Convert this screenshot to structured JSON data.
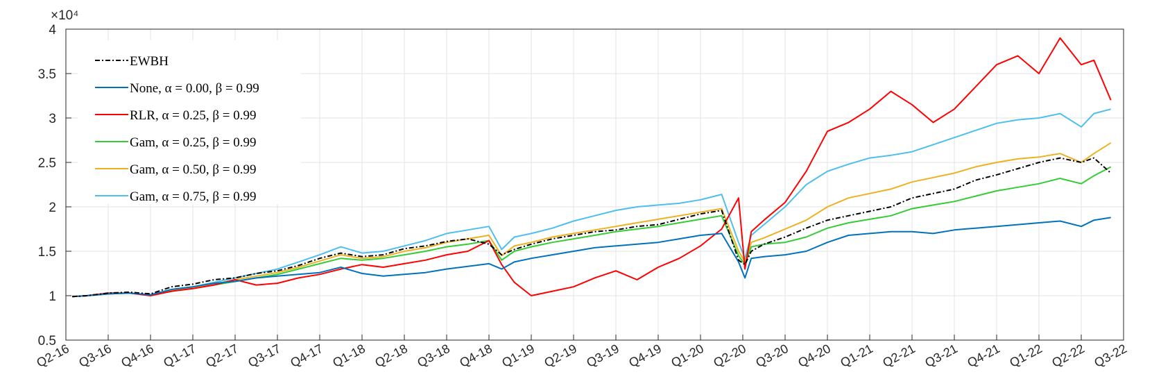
{
  "chart_data": {
    "type": "line",
    "title": "",
    "xlabel": "",
    "ylabel": "",
    "y_exponent_label": "×10⁴",
    "ylim": [
      0.5,
      4.0
    ],
    "yticks": [
      "0.5",
      "1",
      "1.5",
      "2",
      "2.5",
      "3",
      "3.5",
      "4"
    ],
    "yticks_values": [
      0.5,
      1,
      1.5,
      2,
      2.5,
      3,
      3.5,
      4
    ],
    "x_quarters": [
      "Q2-16",
      "Q3-16",
      "Q4-16",
      "Q1-17",
      "Q2-17",
      "Q3-17",
      "Q4-17",
      "Q1-18",
      "Q2-18",
      "Q3-18",
      "Q4-18",
      "Q1-19",
      "Q2-19",
      "Q3-19",
      "Q4-19",
      "Q1-20",
      "Q2-20",
      "Q3-20",
      "Q4-20",
      "Q1-21",
      "Q2-21",
      "Q3-21",
      "Q4-21",
      "Q1-22",
      "Q2-22",
      "Q3-22"
    ],
    "grid": true,
    "legend_position": "top-left",
    "series": [
      {
        "name": "EWBH",
        "color": "#000000",
        "dashed": true,
        "x": [
          0.15,
          0.5,
          1,
          1.5,
          2,
          2.5,
          3,
          3.5,
          4,
          4.5,
          5,
          5.5,
          6,
          6.5,
          7,
          7.5,
          8,
          8.5,
          9,
          9.5,
          10,
          10.3,
          10.6,
          11,
          11.5,
          12,
          12.5,
          13,
          13.5,
          14,
          14.5,
          15,
          15.5,
          15.9,
          16.05,
          16.2,
          16.5,
          17,
          17.5,
          18,
          18.5,
          19,
          19.5,
          20,
          20.5,
          21,
          21.5,
          22,
          22.5,
          23,
          23.5,
          24,
          24.3,
          24.7
        ],
        "y": [
          0.99,
          1.0,
          1.03,
          1.04,
          1.02,
          1.1,
          1.13,
          1.18,
          1.2,
          1.25,
          1.28,
          1.34,
          1.42,
          1.48,
          1.44,
          1.46,
          1.53,
          1.56,
          1.61,
          1.64,
          1.58,
          1.46,
          1.52,
          1.58,
          1.64,
          1.68,
          1.72,
          1.74,
          1.78,
          1.8,
          1.86,
          1.92,
          1.96,
          1.4,
          1.35,
          1.5,
          1.58,
          1.66,
          1.76,
          1.85,
          1.9,
          1.95,
          2.0,
          2.1,
          2.15,
          2.2,
          2.3,
          2.36,
          2.43,
          2.5,
          2.55,
          2.5,
          2.55,
          2.38
        ]
      },
      {
        "name": "None, α = 0.00, β = 0.99",
        "color": "#0072BD",
        "dashed": false,
        "x": [
          0.15,
          0.5,
          1,
          1.5,
          2,
          2.5,
          3,
          3.5,
          4,
          4.5,
          5,
          5.5,
          6,
          6.5,
          7,
          7.5,
          8,
          8.5,
          9,
          9.5,
          10,
          10.3,
          10.6,
          11,
          11.5,
          12,
          12.5,
          13,
          13.5,
          14,
          14.5,
          15,
          15.5,
          15.9,
          16.05,
          16.2,
          16.5,
          17,
          17.5,
          18,
          18.5,
          19,
          19.5,
          20,
          20.5,
          21,
          21.5,
          22,
          22.5,
          23,
          23.5,
          24,
          24.3,
          24.7
        ],
        "y": [
          0.99,
          1.0,
          1.02,
          1.03,
          1.01,
          1.07,
          1.1,
          1.14,
          1.16,
          1.2,
          1.22,
          1.24,
          1.26,
          1.32,
          1.25,
          1.22,
          1.24,
          1.26,
          1.3,
          1.33,
          1.36,
          1.3,
          1.38,
          1.42,
          1.46,
          1.5,
          1.54,
          1.56,
          1.58,
          1.6,
          1.64,
          1.68,
          1.7,
          1.38,
          1.2,
          1.42,
          1.44,
          1.46,
          1.5,
          1.6,
          1.68,
          1.7,
          1.72,
          1.72,
          1.7,
          1.74,
          1.76,
          1.78,
          1.8,
          1.82,
          1.84,
          1.78,
          1.85,
          1.88
        ]
      },
      {
        "name": "RLR, α = 0.25, β = 0.99",
        "color": "#FF0000",
        "dashed": false,
        "x": [
          0.15,
          0.5,
          1,
          1.5,
          2,
          2.5,
          3,
          3.5,
          4,
          4.5,
          5,
          5.5,
          6,
          6.5,
          7,
          7.5,
          8,
          8.5,
          9,
          9.5,
          10,
          10.3,
          10.6,
          11,
          11.5,
          12,
          12.5,
          13,
          13.5,
          14,
          14.5,
          15,
          15.5,
          15.9,
          16.05,
          16.2,
          16.5,
          17,
          17.5,
          18,
          18.5,
          19,
          19.5,
          20,
          20.5,
          21,
          21.5,
          22,
          22.5,
          23,
          23.5,
          24,
          24.3,
          24.7
        ],
        "y": [
          0.99,
          1.0,
          1.03,
          1.03,
          1.0,
          1.05,
          1.08,
          1.12,
          1.18,
          1.12,
          1.14,
          1.2,
          1.24,
          1.3,
          1.35,
          1.32,
          1.36,
          1.4,
          1.46,
          1.5,
          1.62,
          1.35,
          1.15,
          1.0,
          1.05,
          1.1,
          1.2,
          1.28,
          1.18,
          1.32,
          1.42,
          1.56,
          1.75,
          2.1,
          1.3,
          1.72,
          1.85,
          2.05,
          2.4,
          2.85,
          2.95,
          3.1,
          3.3,
          3.15,
          2.95,
          3.1,
          3.35,
          3.6,
          3.7,
          3.5,
          3.9,
          3.6,
          3.65,
          3.2
        ]
      },
      {
        "name": "Gam, α = 0.25, β = 0.99",
        "color": "#33CC33",
        "dashed": false,
        "x": [
          0.15,
          0.5,
          1,
          1.5,
          2,
          2.5,
          3,
          3.5,
          4,
          4.5,
          5,
          5.5,
          6,
          6.5,
          7,
          7.5,
          8,
          8.5,
          9,
          9.5,
          10,
          10.3,
          10.6,
          11,
          11.5,
          12,
          12.5,
          13,
          13.5,
          14,
          14.5,
          15,
          15.5,
          15.9,
          16.05,
          16.2,
          16.5,
          17,
          17.5,
          18,
          18.5,
          19,
          19.5,
          20,
          20.5,
          21,
          21.5,
          22,
          22.5,
          23,
          23.5,
          24,
          24.3,
          24.7
        ],
        "y": [
          0.99,
          1.0,
          1.02,
          1.03,
          1.01,
          1.05,
          1.08,
          1.12,
          1.16,
          1.2,
          1.24,
          1.3,
          1.36,
          1.42,
          1.4,
          1.42,
          1.46,
          1.5,
          1.55,
          1.58,
          1.62,
          1.4,
          1.5,
          1.55,
          1.6,
          1.64,
          1.68,
          1.72,
          1.75,
          1.78,
          1.82,
          1.86,
          1.9,
          1.45,
          1.35,
          1.55,
          1.58,
          1.6,
          1.66,
          1.76,
          1.82,
          1.86,
          1.9,
          1.98,
          2.02,
          2.06,
          2.12,
          2.18,
          2.22,
          2.26,
          2.32,
          2.26,
          2.35,
          2.45
        ]
      },
      {
        "name": "Gam, α = 0.50, β = 0.99",
        "color": "#EDB120",
        "dashed": false,
        "x": [
          0.15,
          0.5,
          1,
          1.5,
          2,
          2.5,
          3,
          3.5,
          4,
          4.5,
          5,
          5.5,
          6,
          6.5,
          7,
          7.5,
          8,
          8.5,
          9,
          9.5,
          10,
          10.3,
          10.6,
          11,
          11.5,
          12,
          12.5,
          13,
          13.5,
          14,
          14.5,
          15,
          15.5,
          15.9,
          16.05,
          16.2,
          16.5,
          17,
          17.5,
          18,
          18.5,
          19,
          19.5,
          20,
          20.5,
          21,
          21.5,
          22,
          22.5,
          23,
          23.5,
          24,
          24.3,
          24.7
        ],
        "y": [
          0.99,
          1.0,
          1.02,
          1.03,
          1.01,
          1.06,
          1.09,
          1.13,
          1.18,
          1.22,
          1.26,
          1.32,
          1.39,
          1.46,
          1.42,
          1.44,
          1.5,
          1.54,
          1.6,
          1.64,
          1.68,
          1.45,
          1.56,
          1.6,
          1.66,
          1.7,
          1.74,
          1.78,
          1.82,
          1.86,
          1.9,
          1.94,
          1.98,
          1.5,
          1.38,
          1.6,
          1.65,
          1.75,
          1.85,
          2.0,
          2.1,
          2.15,
          2.2,
          2.28,
          2.33,
          2.38,
          2.45,
          2.5,
          2.54,
          2.56,
          2.6,
          2.5,
          2.6,
          2.72
        ]
      },
      {
        "name": "Gam, α = 0.75, β = 0.99",
        "color": "#4DBEEE",
        "dashed": false,
        "x": [
          0.15,
          0.5,
          1,
          1.5,
          2,
          2.5,
          3,
          3.5,
          4,
          4.5,
          5,
          5.5,
          6,
          6.5,
          7,
          7.5,
          8,
          8.5,
          9,
          9.5,
          10,
          10.3,
          10.6,
          11,
          11.5,
          12,
          12.5,
          13,
          13.5,
          14,
          14.5,
          15,
          15.5,
          15.9,
          16.05,
          16.2,
          16.5,
          17,
          17.5,
          18,
          18.5,
          19,
          19.5,
          20,
          20.5,
          21,
          21.5,
          22,
          22.5,
          23,
          23.5,
          24,
          24.3,
          24.7
        ],
        "y": [
          0.99,
          1.0,
          1.02,
          1.03,
          1.01,
          1.07,
          1.1,
          1.15,
          1.2,
          1.25,
          1.3,
          1.38,
          1.46,
          1.55,
          1.48,
          1.5,
          1.56,
          1.62,
          1.7,
          1.74,
          1.78,
          1.52,
          1.66,
          1.7,
          1.76,
          1.84,
          1.9,
          1.96,
          2.0,
          2.02,
          2.04,
          2.08,
          2.14,
          1.6,
          1.42,
          1.68,
          1.8,
          2.0,
          2.25,
          2.4,
          2.48,
          2.55,
          2.58,
          2.62,
          2.7,
          2.78,
          2.86,
          2.94,
          2.98,
          3.0,
          3.05,
          2.9,
          3.05,
          3.1
        ]
      }
    ]
  }
}
